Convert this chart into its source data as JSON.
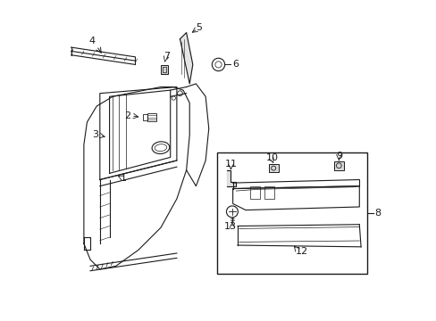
{
  "bg_color": "#ffffff",
  "line_color": "#1a1a1a",
  "fig_width": 4.89,
  "fig_height": 3.6,
  "dpi": 100,
  "door_outer": {
    "x": [
      0.08,
      0.09,
      0.1,
      0.11,
      0.13,
      0.16,
      0.19,
      0.24,
      0.3,
      0.36,
      0.4,
      0.42,
      0.43,
      0.43,
      0.42,
      0.4,
      0.37,
      0.32,
      0.25,
      0.18,
      0.13,
      0.1,
      0.08,
      0.08
    ],
    "y": [
      0.28,
      0.35,
      0.42,
      0.5,
      0.58,
      0.65,
      0.7,
      0.73,
      0.74,
      0.75,
      0.74,
      0.72,
      0.68,
      0.62,
      0.55,
      0.49,
      0.44,
      0.37,
      0.29,
      0.22,
      0.19,
      0.22,
      0.25,
      0.28
    ]
  },
  "door_inner_frame": {
    "x": [
      0.13,
      0.15,
      0.16,
      0.18,
      0.23,
      0.29,
      0.34,
      0.37,
      0.38,
      0.38,
      0.37,
      0.34,
      0.29,
      0.22,
      0.16,
      0.13,
      0.13
    ],
    "y": [
      0.54,
      0.62,
      0.66,
      0.7,
      0.72,
      0.73,
      0.73,
      0.72,
      0.7,
      0.66,
      0.62,
      0.58,
      0.54,
      0.5,
      0.52,
      0.54,
      0.54
    ]
  }
}
